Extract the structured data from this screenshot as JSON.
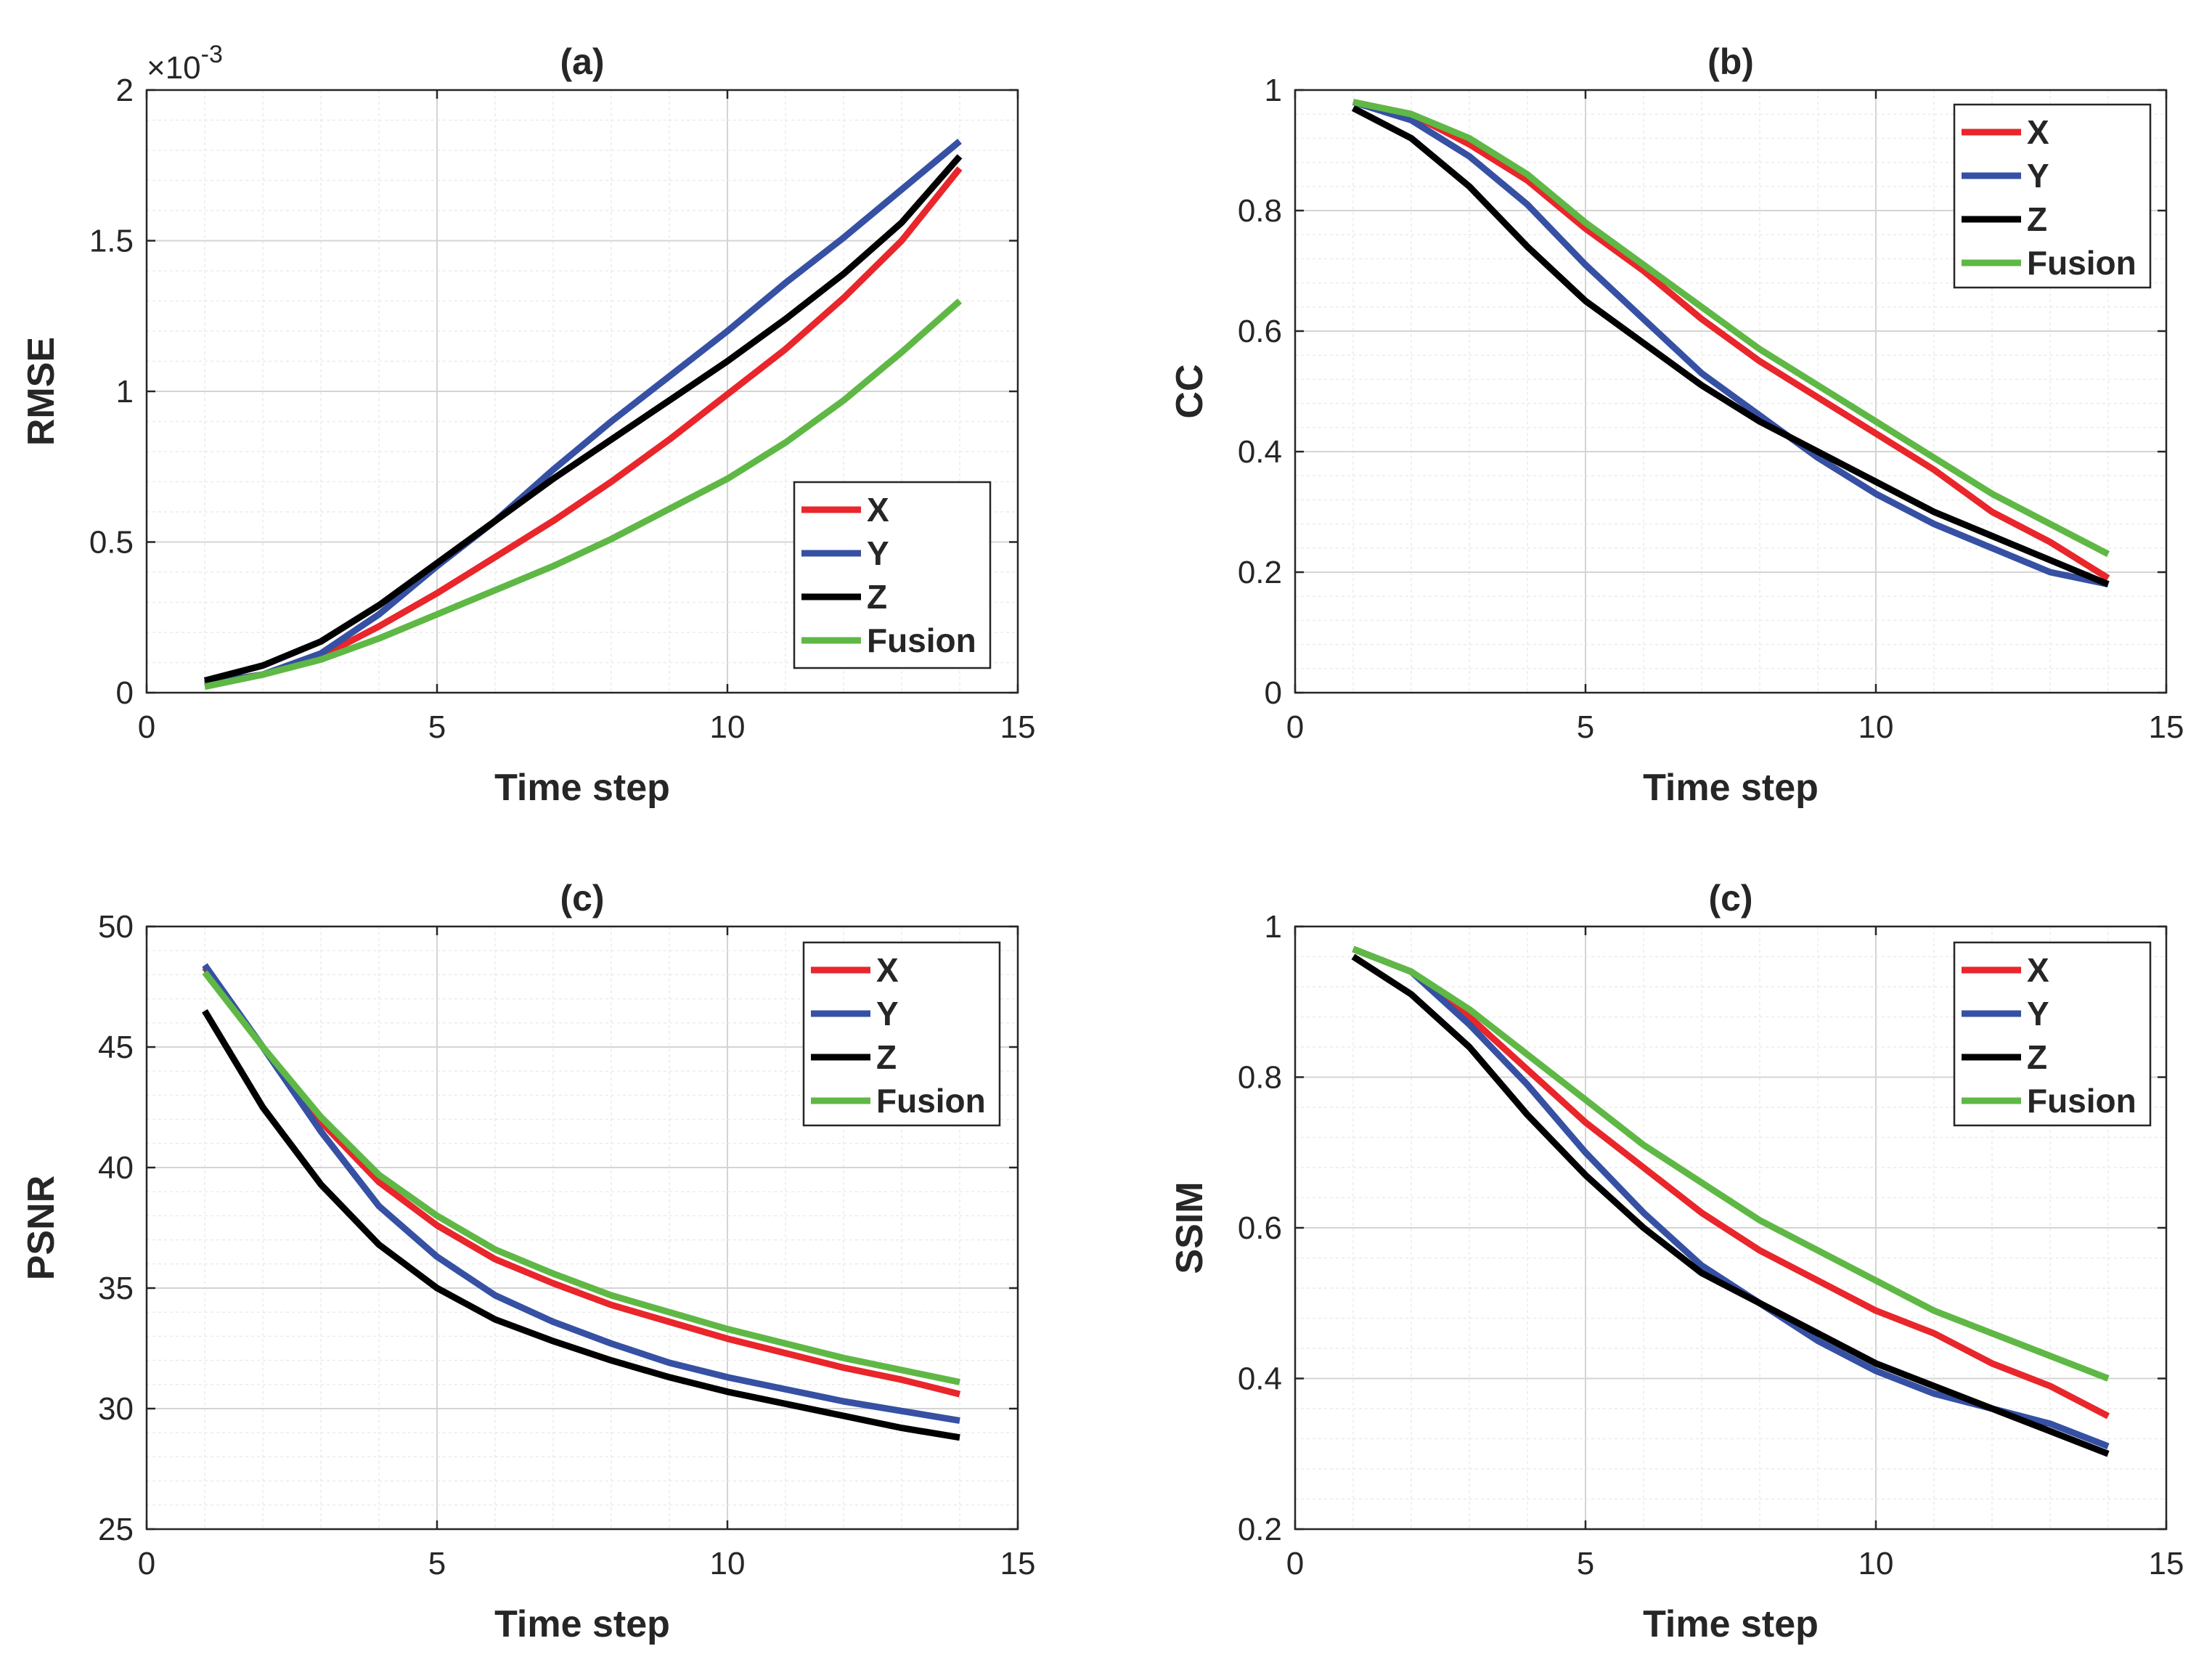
{
  "figure": {
    "series_colors": {
      "X": "#e8262b",
      "Y": "#3650a3",
      "Z": "#000000",
      "Fusion": "#5fb845"
    }
  },
  "chart_data": [
    {
      "type": "line",
      "title": "(a)",
      "xlabel": "Time step",
      "ylabel": "RMSE",
      "exponent_prefix": "×10",
      "exponent_power": "-3",
      "xlim": [
        0,
        15
      ],
      "ylim": [
        0,
        2
      ],
      "xticks": [
        0,
        5,
        10,
        15
      ],
      "xtick_labels": [
        "0",
        "5",
        "10",
        "15"
      ],
      "yticks": [
        0,
        0.5,
        1,
        1.5,
        2
      ],
      "ytick_labels": [
        "0",
        "0.5",
        "1",
        "1.5",
        "2"
      ],
      "grid": true,
      "legend_position": "lower-right",
      "x": [
        1,
        2,
        3,
        4,
        5,
        6,
        7,
        8,
        9,
        10,
        11,
        12,
        13,
        14
      ],
      "series": [
        {
          "name": "X",
          "values": [
            0.03,
            0.06,
            0.12,
            0.22,
            0.33,
            0.45,
            0.57,
            0.7,
            0.84,
            0.99,
            1.14,
            1.31,
            1.5,
            1.74
          ]
        },
        {
          "name": "Y",
          "values": [
            0.03,
            0.06,
            0.13,
            0.26,
            0.42,
            0.57,
            0.74,
            0.9,
            1.05,
            1.2,
            1.36,
            1.51,
            1.67,
            1.83
          ]
        },
        {
          "name": "Z",
          "values": [
            0.04,
            0.09,
            0.17,
            0.29,
            0.43,
            0.57,
            0.71,
            0.84,
            0.97,
            1.1,
            1.24,
            1.39,
            1.56,
            1.78
          ]
        },
        {
          "name": "Fusion",
          "values": [
            0.02,
            0.06,
            0.11,
            0.18,
            0.26,
            0.34,
            0.42,
            0.51,
            0.61,
            0.71,
            0.83,
            0.97,
            1.13,
            1.3
          ]
        }
      ]
    },
    {
      "type": "line",
      "title": "(b)",
      "xlabel": "Time step",
      "ylabel": "CC",
      "xlim": [
        0,
        15
      ],
      "ylim": [
        0,
        1
      ],
      "xticks": [
        0,
        5,
        10,
        15
      ],
      "xtick_labels": [
        "0",
        "5",
        "10",
        "15"
      ],
      "yticks": [
        0,
        0.2,
        0.4,
        0.6,
        0.8,
        1
      ],
      "ytick_labels": [
        "0",
        "0.2",
        "0.4",
        "0.6",
        "0.8",
        "1"
      ],
      "grid": true,
      "legend_position": "top-right",
      "x": [
        1,
        2,
        3,
        4,
        5,
        6,
        7,
        8,
        9,
        10,
        11,
        12,
        13,
        14
      ],
      "series": [
        {
          "name": "X",
          "values": [
            0.98,
            0.96,
            0.91,
            0.85,
            0.77,
            0.7,
            0.62,
            0.55,
            0.49,
            0.43,
            0.37,
            0.3,
            0.25,
            0.19
          ]
        },
        {
          "name": "Y",
          "values": [
            0.98,
            0.95,
            0.89,
            0.81,
            0.71,
            0.62,
            0.53,
            0.46,
            0.39,
            0.33,
            0.28,
            0.24,
            0.2,
            0.18
          ]
        },
        {
          "name": "Z",
          "values": [
            0.97,
            0.92,
            0.84,
            0.74,
            0.65,
            0.58,
            0.51,
            0.45,
            0.4,
            0.35,
            0.3,
            0.26,
            0.22,
            0.18
          ]
        },
        {
          "name": "Fusion",
          "values": [
            0.98,
            0.96,
            0.92,
            0.86,
            0.78,
            0.71,
            0.64,
            0.57,
            0.51,
            0.45,
            0.39,
            0.33,
            0.28,
            0.23
          ]
        }
      ]
    },
    {
      "type": "line",
      "title": "(c)",
      "xlabel": "Time step",
      "ylabel": "PSNR",
      "xlim": [
        0,
        15
      ],
      "ylim": [
        25,
        50
      ],
      "xticks": [
        0,
        5,
        10,
        15
      ],
      "xtick_labels": [
        "0",
        "5",
        "10",
        "15"
      ],
      "yticks": [
        25,
        30,
        35,
        40,
        45,
        50
      ],
      "ytick_labels": [
        "25",
        "30",
        "35",
        "40",
        "45",
        "50"
      ],
      "grid": true,
      "legend_position": "top-right",
      "x": [
        1,
        2,
        3,
        4,
        5,
        6,
        7,
        8,
        9,
        10,
        11,
        12,
        13,
        14
      ],
      "series": [
        {
          "name": "X",
          "values": [
            48.3,
            45.0,
            41.9,
            39.4,
            37.6,
            36.2,
            35.2,
            34.3,
            33.6,
            32.9,
            32.3,
            31.7,
            31.2,
            30.6
          ]
        },
        {
          "name": "Y",
          "values": [
            48.4,
            45.0,
            41.5,
            38.4,
            36.3,
            34.7,
            33.6,
            32.7,
            31.9,
            31.3,
            30.8,
            30.3,
            29.9,
            29.5
          ]
        },
        {
          "name": "Z",
          "values": [
            46.5,
            42.5,
            39.3,
            36.8,
            35.0,
            33.7,
            32.8,
            32.0,
            31.3,
            30.7,
            30.2,
            29.7,
            29.2,
            28.8
          ]
        },
        {
          "name": "Fusion",
          "values": [
            48.1,
            45.0,
            42.1,
            39.7,
            38.0,
            36.6,
            35.6,
            34.7,
            34.0,
            33.3,
            32.7,
            32.1,
            31.6,
            31.1
          ]
        }
      ]
    },
    {
      "type": "line",
      "title": "(c)",
      "xlabel": "Time step",
      "ylabel": "SSIM",
      "xlim": [
        0,
        15
      ],
      "ylim": [
        0.2,
        1
      ],
      "xticks": [
        0,
        5,
        10,
        15
      ],
      "xtick_labels": [
        "0",
        "5",
        "10",
        "15"
      ],
      "yticks": [
        0.2,
        0.4,
        0.6,
        0.8,
        1
      ],
      "ytick_labels": [
        "0.2",
        "0.4",
        "0.6",
        "0.8",
        "1"
      ],
      "grid": true,
      "legend_position": "top-right",
      "x": [
        1,
        2,
        3,
        4,
        5,
        6,
        7,
        8,
        9,
        10,
        11,
        12,
        13,
        14
      ],
      "series": [
        {
          "name": "X",
          "values": [
            0.97,
            0.94,
            0.88,
            0.81,
            0.74,
            0.68,
            0.62,
            0.57,
            0.53,
            0.49,
            0.46,
            0.42,
            0.39,
            0.35
          ]
        },
        {
          "name": "Y",
          "values": [
            0.97,
            0.94,
            0.87,
            0.79,
            0.7,
            0.62,
            0.55,
            0.5,
            0.45,
            0.41,
            0.38,
            0.36,
            0.34,
            0.31
          ]
        },
        {
          "name": "Z",
          "values": [
            0.96,
            0.91,
            0.84,
            0.75,
            0.67,
            0.6,
            0.54,
            0.5,
            0.46,
            0.42,
            0.39,
            0.36,
            0.33,
            0.3
          ]
        },
        {
          "name": "Fusion",
          "values": [
            0.97,
            0.94,
            0.89,
            0.83,
            0.77,
            0.71,
            0.66,
            0.61,
            0.57,
            0.53,
            0.49,
            0.46,
            0.43,
            0.4
          ]
        }
      ]
    }
  ]
}
